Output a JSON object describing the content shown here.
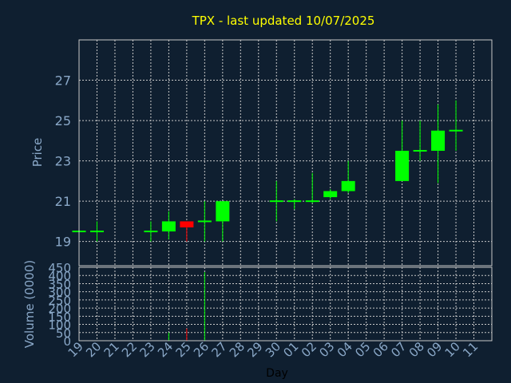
{
  "chart_data": {
    "type": "candlestick",
    "title": "TPX - last updated 10/07/2025",
    "xlabel": "Day",
    "ylabel_price": "Price",
    "ylabel_volume": "Volume (0000)",
    "price_ylim": [
      17.8,
      29.0
    ],
    "price_yticks": [
      19,
      21,
      23,
      25,
      27
    ],
    "volume_ylim": [
      0,
      450
    ],
    "volume_yticks": [
      0,
      50,
      100,
      150,
      200,
      250,
      300,
      350,
      400,
      450
    ],
    "days": [
      "19",
      "20",
      "21",
      "22",
      "23",
      "24",
      "25",
      "26",
      "27",
      "28",
      "29",
      "30",
      "01",
      "02",
      "03",
      "04",
      "05",
      "06",
      "07",
      "08",
      "09",
      "10",
      "11"
    ],
    "candles": [
      {
        "day": "19",
        "open": 19.5,
        "high": 19.5,
        "low": 19.5,
        "close": 19.5,
        "volume": 0
      },
      {
        "day": "20",
        "open": 19.5,
        "high": 20.0,
        "low": 19.0,
        "close": 19.5,
        "volume": 0
      },
      {
        "day": "23",
        "open": 19.5,
        "high": 20.0,
        "low": 19.0,
        "close": 19.5,
        "volume": 0
      },
      {
        "day": "24",
        "open": 19.5,
        "high": 20.5,
        "low": 19.1,
        "close": 20.0,
        "volume": 50
      },
      {
        "day": "25",
        "open": 20.0,
        "high": 20.0,
        "low": 19.0,
        "close": 19.7,
        "volume": 75
      },
      {
        "day": "26",
        "open": 20.0,
        "high": 21.0,
        "low": 19.0,
        "close": 20.0,
        "volume": 420
      },
      {
        "day": "27",
        "open": 20.0,
        "high": 21.0,
        "low": 19.0,
        "close": 21.0,
        "volume": 0
      },
      {
        "day": "30",
        "open": 21.0,
        "high": 22.0,
        "low": 20.0,
        "close": 21.0,
        "volume": 0
      },
      {
        "day": "01",
        "open": 21.0,
        "high": 21.1,
        "low": 20.6,
        "close": 21.0,
        "volume": 0
      },
      {
        "day": "02",
        "open": 21.0,
        "high": 22.4,
        "low": 20.9,
        "close": 21.0,
        "volume": 0
      },
      {
        "day": "03",
        "open": 21.2,
        "high": 21.6,
        "low": 21.1,
        "close": 21.5,
        "volume": 0
      },
      {
        "day": "04",
        "open": 21.5,
        "high": 23.0,
        "low": 21.4,
        "close": 22.0,
        "volume": 0
      },
      {
        "day": "07",
        "open": 22.0,
        "high": 25.0,
        "low": 22.0,
        "close": 23.5,
        "volume": 0
      },
      {
        "day": "08",
        "open": 23.5,
        "high": 25.0,
        "low": 23.0,
        "close": 23.5,
        "volume": 0
      },
      {
        "day": "09",
        "open": 23.5,
        "high": 25.8,
        "low": 21.9,
        "close": 24.5,
        "volume": 0
      },
      {
        "day": "10",
        "open": 24.5,
        "high": 26.0,
        "low": 23.5,
        "close": 24.5,
        "volume": 0
      }
    ],
    "colors": {
      "background": "#0f1f30",
      "up": "#00ff00",
      "down": "#ff0000",
      "grid": "#c8c8c8",
      "axis_text": "#8aa8c8",
      "title": "#ffff00"
    },
    "grid": true
  }
}
